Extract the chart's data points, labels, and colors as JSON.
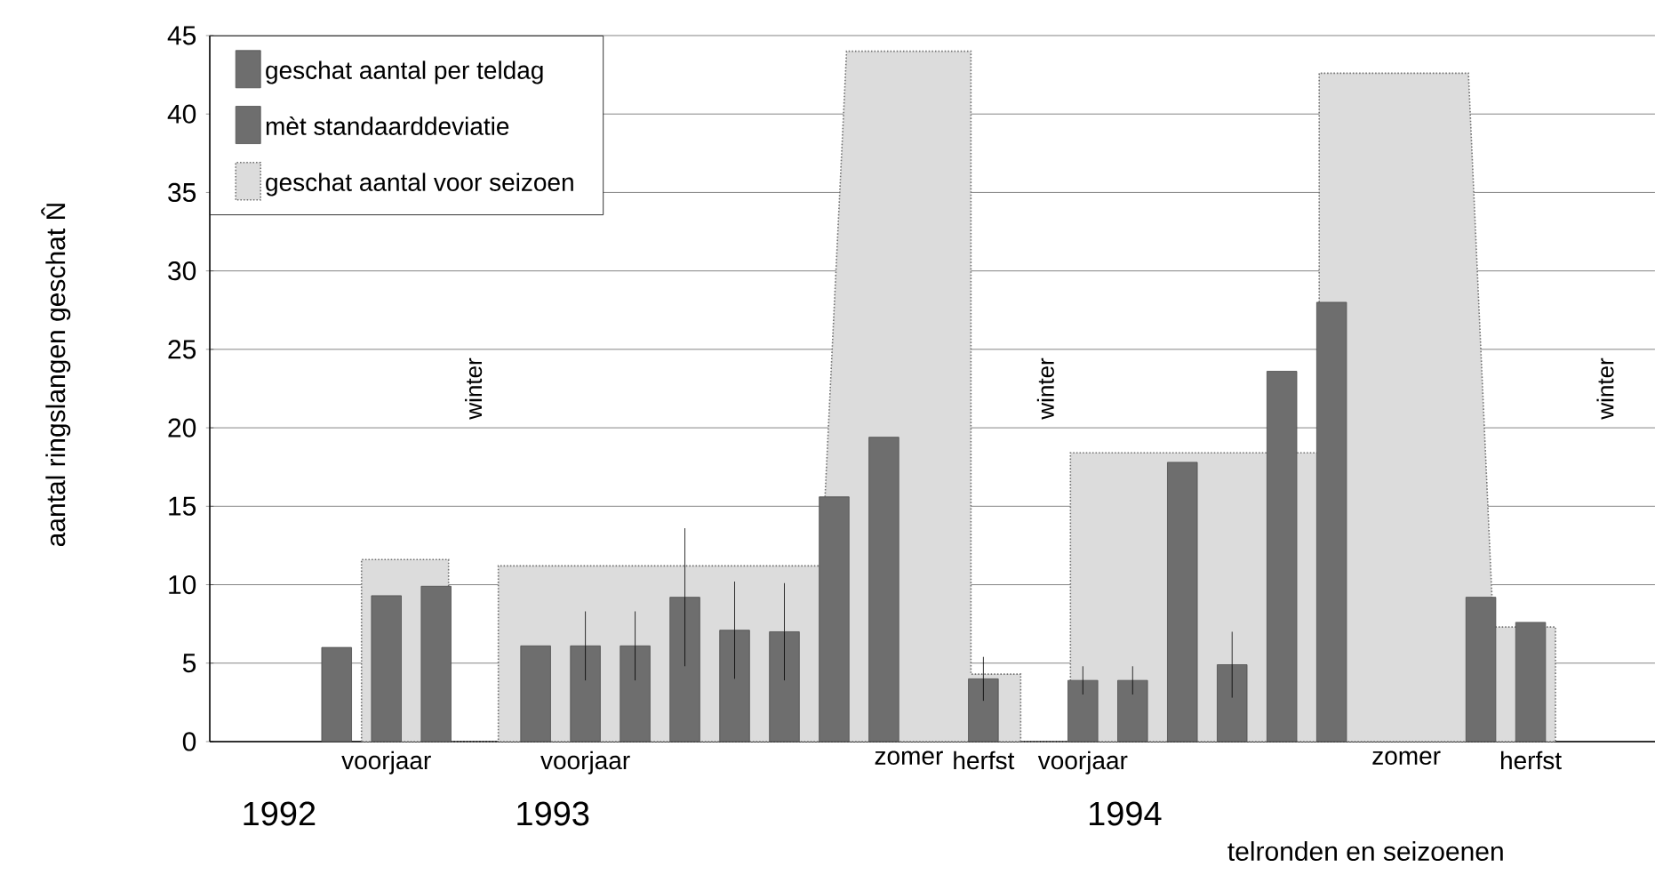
{
  "chart_data": {
    "type": "bar",
    "xlabel": "telronden en seizoenen",
    "ylabel": "aantal ringslangen geschat N̂",
    "categories": [
      null,
      null,
      null,
      null,
      null,
      null,
      "voorjaar",
      null,
      null,
      null,
      null,
      null,
      null,
      null,
      "voorjaar",
      null,
      null,
      null,
      null,
      null,
      null,
      null,
      null,
      null,
      null,
      null,
      null,
      "zomer",
      null,
      null,
      "herfst",
      null,
      null,
      null,
      "voorjaar",
      null,
      null,
      null,
      null,
      null,
      null,
      null,
      null,
      null,
      null,
      null,
      null,
      "zomer",
      null,
      null,
      null,
      null,
      "herfst",
      null,
      null,
      null,
      null
    ],
    "ylim": [
      0,
      45
    ],
    "yticks": [
      0,
      5,
      10,
      15,
      20,
      25,
      30,
      35,
      40,
      45
    ],
    "grid": "y",
    "legend": "top left",
    "series": [
      {
        "name": "geschat aantal voor seizoen",
        "type": "area",
        "color": "#dcdcdc",
        "values": [
          null,
          null,
          null,
          null,
          null,
          11.6,
          11.6,
          11.6,
          11.6,
          0,
          0,
          11.2,
          11.2,
          11.2,
          11.2,
          11.2,
          11.2,
          11.2,
          11.2,
          11.2,
          11.2,
          11.2,
          11.2,
          11.2,
          null,
          44.0,
          44.0,
          44.0,
          44.0,
          44.0,
          4.3,
          4.3,
          0,
          0,
          18.4,
          18.4,
          18.4,
          18.4,
          18.4,
          18.4,
          18.4,
          18.4,
          null,
          18.4,
          42.6,
          42.6,
          42.6,
          42.6,
          42.6,
          42.6,
          null,
          7.3,
          null,
          7.3,
          null,
          null,
          null
        ]
      },
      {
        "name": "geschat aantal per teldag",
        "color": "#6e6e6e",
        "values": [
          null,
          null,
          null,
          null,
          6.0,
          null,
          9.3,
          null,
          9.9,
          null,
          null,
          null,
          6.1,
          null,
          null,
          null,
          null,
          null,
          null,
          null,
          null,
          null,
          null,
          null,
          15.6,
          null,
          19.4,
          null,
          null,
          null,
          null,
          null,
          null,
          null,
          null,
          null,
          null,
          null,
          17.8,
          null,
          null,
          null,
          23.6,
          null,
          28.0,
          null,
          null,
          null,
          null,
          null,
          9.2,
          null,
          7.6,
          null,
          null,
          null,
          null
        ]
      },
      {
        "name": "mèt standaarddeviatie",
        "color": "#6e6e6e",
        "values": [
          null,
          null,
          null,
          null,
          null,
          null,
          null,
          null,
          null,
          null,
          null,
          null,
          null,
          null,
          6.1,
          null,
          6.1,
          null,
          9.2,
          null,
          7.1,
          null,
          7.0,
          null,
          null,
          null,
          null,
          null,
          null,
          null,
          4.0,
          null,
          null,
          null,
          3.9,
          null,
          3.9,
          null,
          null,
          null,
          4.9,
          null,
          null,
          null,
          null,
          null,
          null,
          null,
          null,
          null,
          null,
          null,
          null,
          null,
          null,
          null,
          null
        ],
        "errors": [
          null,
          null,
          null,
          null,
          null,
          null,
          null,
          null,
          null,
          null,
          null,
          null,
          null,
          null,
          2.2,
          null,
          2.2,
          null,
          4.4,
          null,
          3.1,
          null,
          3.1,
          null,
          null,
          null,
          null,
          null,
          null,
          null,
          1.4,
          null,
          null,
          null,
          0.9,
          null,
          0.9,
          null,
          null,
          null,
          2.1,
          null,
          null,
          null,
          null,
          null,
          null,
          null,
          null,
          null,
          null,
          null,
          null,
          null,
          null,
          null,
          null
        ]
      }
    ],
    "annotations": [
      "1992",
      "winter",
      "1993",
      "winter",
      "1994",
      "winter"
    ]
  }
}
